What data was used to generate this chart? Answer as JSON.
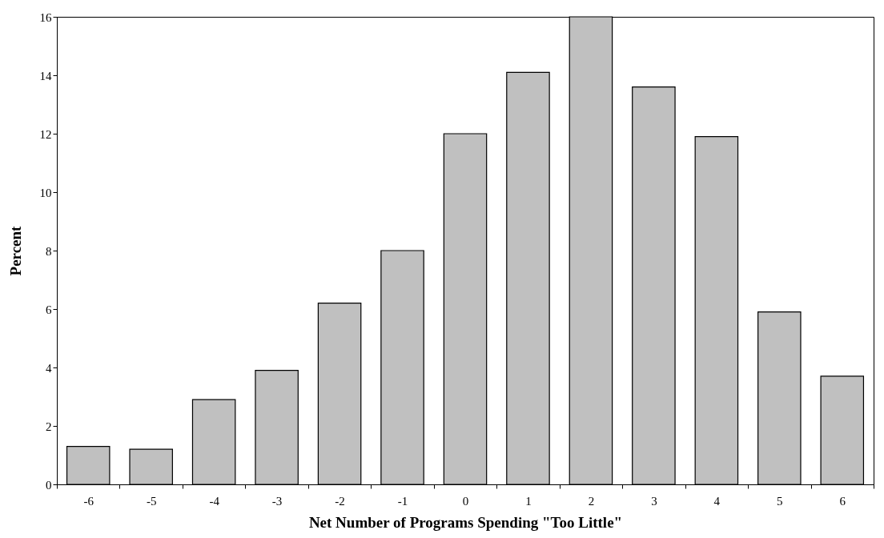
{
  "chart_data": {
    "type": "bar",
    "xlabel": "Net Number of Programs Spending \"Too Little\"",
    "ylabel": "Percent",
    "categories": [
      "-6",
      "-5",
      "-4",
      "-3",
      "-2",
      "-1",
      "0",
      "1",
      "2",
      "3",
      "4",
      "5",
      "6"
    ],
    "values": [
      1.3,
      1.2,
      2.9,
      3.9,
      6.2,
      8.0,
      12.0,
      14.1,
      16.0,
      13.6,
      11.9,
      5.9,
      3.7
    ],
    "color": "#c0c0c0",
    "ylim": [
      0,
      16
    ],
    "yticks": [
      0,
      2,
      4,
      6,
      8,
      10,
      12,
      14,
      16
    ],
    "grid": false
  }
}
